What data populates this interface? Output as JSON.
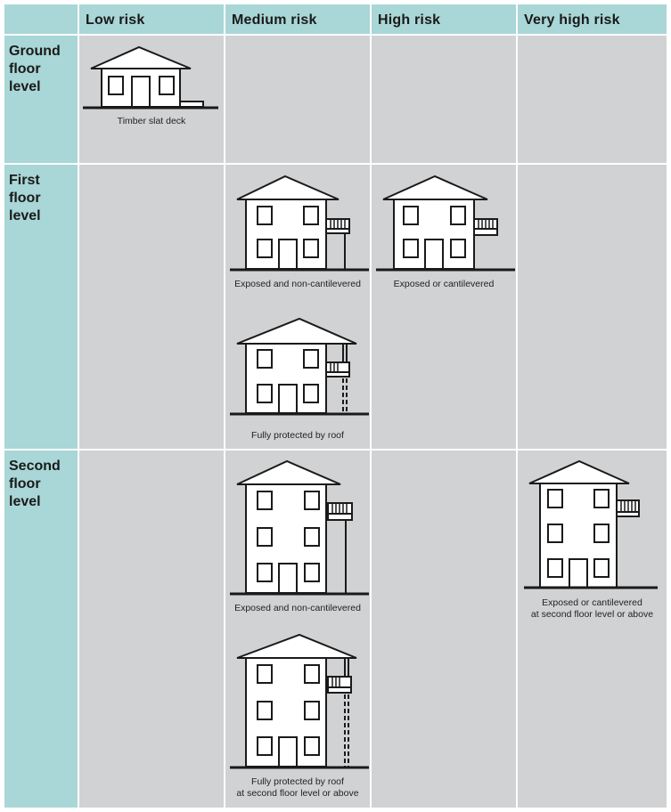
{
  "headers": {
    "low": "Low risk",
    "medium": "Medium risk",
    "high": "High risk",
    "very_high": "Very high risk"
  },
  "rows": {
    "ground": "Ground floor level",
    "first": "First floor level",
    "second": "Second floor level"
  },
  "captions": {
    "ground_low": "Timber slat deck",
    "first_medium_exposed": "Exposed and non-cantilevered",
    "first_medium_protected": "Fully protected by roof",
    "first_high": "Exposed or cantilevered",
    "second_medium_exposed": "Exposed and non-cantilevered",
    "second_medium_protected_1": "Fully protected by roof",
    "second_medium_protected_2": "at second floor level or above",
    "second_very_high_1": "Exposed or cantilevered",
    "second_very_high_2": "at second floor level or above"
  },
  "colors": {
    "header_bg": "#a9d6d6",
    "cell_bg": "#d1d2d4",
    "grid_line": "#ffffff",
    "ink": "#1a1a1a"
  }
}
